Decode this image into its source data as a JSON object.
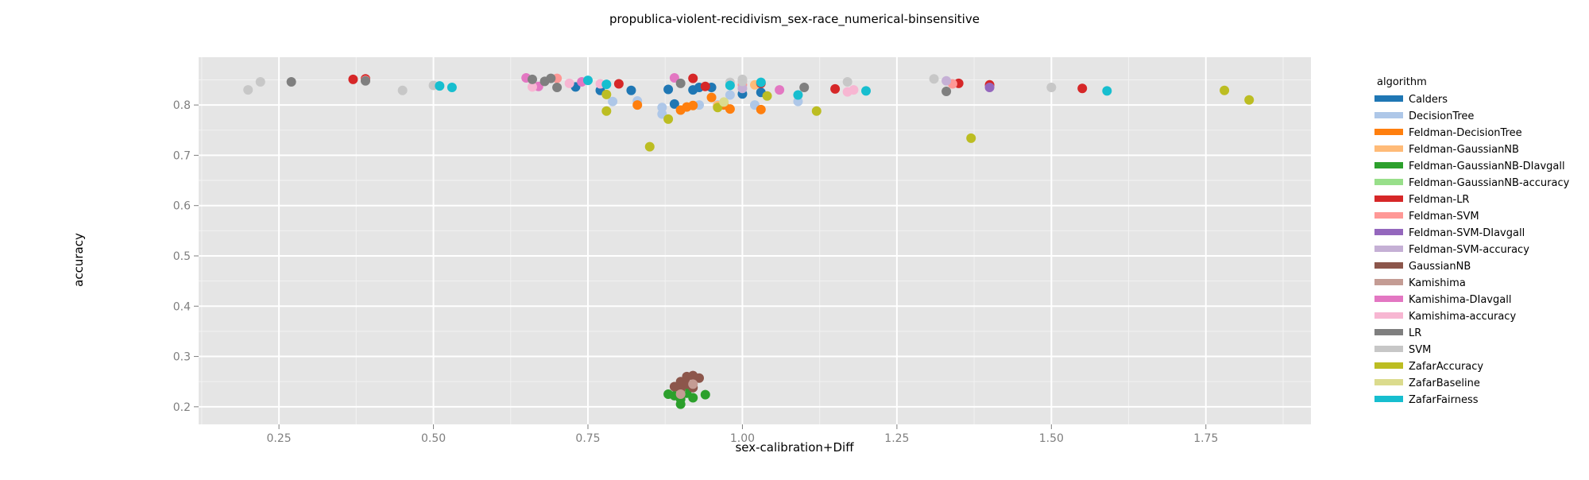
{
  "chart_data": {
    "type": "scatter",
    "title": "propublica-violent-recidivism_sex-race_numerical-binsensitive",
    "xlabel": "sex-calibration+Diff",
    "ylabel": "accuracy",
    "xlim": [
      0.12,
      1.92
    ],
    "ylim": [
      0.165,
      0.895
    ],
    "xticks": [
      0.25,
      0.5,
      0.75,
      1.0,
      1.25,
      1.5,
      1.75
    ],
    "xtick_labels": [
      "0.25",
      "0.50",
      "0.75",
      "1.00",
      "1.25",
      "1.50",
      "1.75"
    ],
    "yticks": [
      0.2,
      0.3,
      0.4,
      0.5,
      0.6,
      0.7,
      0.8
    ],
    "ytick_labels": [
      "0.2",
      "0.3",
      "0.4",
      "0.5",
      "0.6",
      "0.7",
      "0.8"
    ],
    "grid": true,
    "legend": {
      "title": "algorithm",
      "position": "right"
    },
    "series": [
      {
        "name": "Calders",
        "color": "#1f77b4",
        "x": [
          0.73,
          0.77,
          0.82,
          0.88,
          0.89,
          0.92,
          0.93,
          0.95,
          1.0,
          1.03
        ],
        "y": [
          0.836,
          0.829,
          0.829,
          0.831,
          0.802,
          0.83,
          0.835,
          0.835,
          0.822,
          0.825
        ]
      },
      {
        "name": "DecisionTree",
        "color": "#aec7e8",
        "x": [
          0.79,
          0.83,
          0.87,
          0.87,
          0.9,
          0.93,
          0.96,
          0.98,
          1.02,
          1.09
        ],
        "y": [
          0.807,
          0.808,
          0.782,
          0.795,
          0.79,
          0.8,
          0.8,
          0.82,
          0.8,
          0.807
        ]
      },
      {
        "name": "Feldman-DecisionTree",
        "color": "#ff7f0e",
        "x": [
          0.83,
          0.9,
          0.91,
          0.92,
          0.95,
          0.96,
          0.97,
          0.98,
          1.03
        ],
        "y": [
          0.8,
          0.79,
          0.796,
          0.799,
          0.815,
          0.797,
          0.8,
          0.792,
          0.791
        ]
      },
      {
        "name": "Feldman-GaussianNB",
        "color": "#ffbb78",
        "x": [
          0.96,
          1.02
        ],
        "y": [
          0.799,
          0.84
        ]
      },
      {
        "name": "Feldman-GaussianNB-DIavgall",
        "color": "#2ca02c",
        "x": [
          0.88,
          0.89,
          0.9,
          0.9,
          0.91,
          0.92,
          0.94
        ],
        "y": [
          0.225,
          0.222,
          0.205,
          0.215,
          0.227,
          0.218,
          0.224
        ]
      },
      {
        "name": "Feldman-GaussianNB-accuracy",
        "color": "#98df8a",
        "x": [
          0.9
        ],
        "y": [
          0.233
        ]
      },
      {
        "name": "Feldman-LR",
        "color": "#d62728",
        "x": [
          0.37,
          0.39,
          0.8,
          0.92,
          0.94,
          1.03,
          1.15,
          1.35,
          1.4,
          1.55
        ],
        "y": [
          0.851,
          0.852,
          0.842,
          0.853,
          0.837,
          0.843,
          0.832,
          0.843,
          0.84,
          0.833
        ]
      },
      {
        "name": "Feldman-SVM",
        "color": "#ff9896",
        "x": [
          0.39,
          0.7,
          1.0,
          1.34
        ],
        "y": [
          0.849,
          0.853,
          0.84,
          0.842
        ]
      },
      {
        "name": "Feldman-SVM-DIavgall",
        "color": "#9467bd",
        "x": [
          1.4
        ],
        "y": [
          0.835
        ]
      },
      {
        "name": "Feldman-SVM-accuracy",
        "color": "#c5b0d5",
        "x": [
          1.0,
          1.33
        ],
        "y": [
          0.833,
          0.848
        ]
      },
      {
        "name": "GaussianNB",
        "color": "#8c564b",
        "x": [
          0.89,
          0.9,
          0.9,
          0.91,
          0.91,
          0.92,
          0.92,
          0.93
        ],
        "y": [
          0.24,
          0.25,
          0.235,
          0.26,
          0.245,
          0.262,
          0.238,
          0.257
        ]
      },
      {
        "name": "Kamishima",
        "color": "#c49c94",
        "x": [
          0.9,
          0.92
        ],
        "y": [
          0.225,
          0.245
        ]
      },
      {
        "name": "Kamishima-DIavgall",
        "color": "#e377c2",
        "x": [
          0.65,
          0.67,
          0.74,
          0.89,
          1.06
        ],
        "y": [
          0.854,
          0.837,
          0.846,
          0.854,
          0.83
        ]
      },
      {
        "name": "Kamishima-accuracy",
        "color": "#f7b6d2",
        "x": [
          0.66,
          0.72,
          0.77,
          1.17,
          1.18
        ],
        "y": [
          0.836,
          0.843,
          0.842,
          0.826,
          0.83
        ]
      },
      {
        "name": "LR",
        "color": "#7f7f7f",
        "x": [
          0.27,
          0.39,
          0.66,
          0.68,
          0.69,
          0.7,
          0.9,
          1.1,
          1.33
        ],
        "y": [
          0.846,
          0.848,
          0.851,
          0.847,
          0.853,
          0.835,
          0.843,
          0.835,
          0.827
        ]
      },
      {
        "name": "SVM",
        "color": "#c7c7c7",
        "x": [
          0.2,
          0.22,
          0.45,
          0.5,
          0.98,
          1.0,
          1.0,
          1.17,
          1.31,
          1.5
        ],
        "y": [
          0.83,
          0.846,
          0.829,
          0.839,
          0.845,
          0.851,
          0.847,
          0.846,
          0.852,
          0.835
        ]
      },
      {
        "name": "ZafarAccuracy",
        "color": "#bcbd22",
        "x": [
          0.78,
          0.78,
          0.85,
          0.88,
          0.96,
          1.04,
          1.12,
          1.37,
          1.78,
          1.82
        ],
        "y": [
          0.821,
          0.788,
          0.717,
          0.772,
          0.795,
          0.818,
          0.788,
          0.734,
          0.829,
          0.81
        ]
      },
      {
        "name": "ZafarBaseline",
        "color": "#dbdb8d",
        "x": [
          0.97
        ],
        "y": [
          0.806
        ]
      },
      {
        "name": "ZafarFairness",
        "color": "#17becf",
        "x": [
          0.51,
          0.53,
          0.75,
          0.78,
          0.98,
          1.03,
          1.09,
          1.2,
          1.59
        ],
        "y": [
          0.838,
          0.835,
          0.849,
          0.841,
          0.839,
          0.845,
          0.82,
          0.828,
          0.828
        ]
      }
    ]
  }
}
